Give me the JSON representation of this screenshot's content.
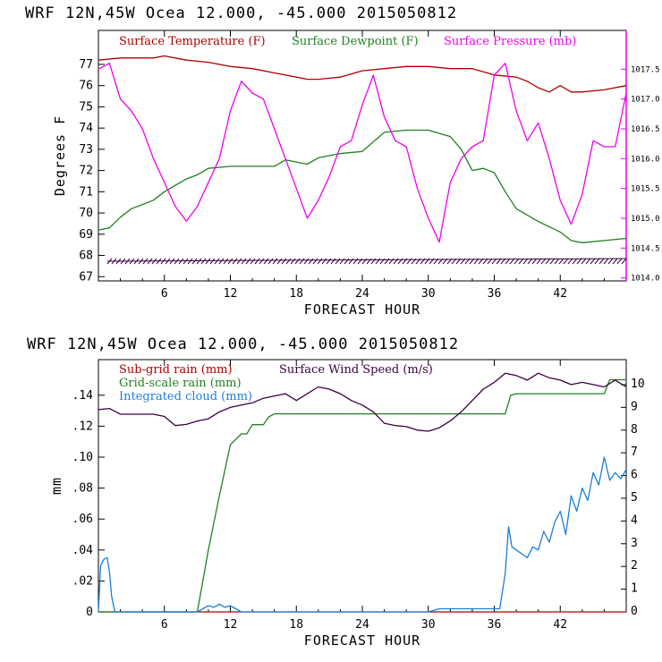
{
  "chart_data": [
    {
      "type": "line",
      "title": "WRF   12N,45W Ocea  12.000, -45.000  2015050812",
      "xlabel": "FORECAST HOUR",
      "ylabel": "Degrees F",
      "xlim": [
        0,
        48
      ],
      "ylim": [
        66.8,
        78.6
      ],
      "y2lim": [
        1013.95,
        1018.15
      ],
      "x_ticks": [
        "6",
        "12",
        "18",
        "24",
        "30",
        "36",
        "42"
      ],
      "y_ticks": [
        "67",
        "68",
        "69",
        "70",
        "71",
        "72",
        "73",
        "74",
        "75",
        "76",
        "77"
      ],
      "y2_ticks": [
        "1014.0",
        "1014.5",
        "1015.0",
        "1015.5",
        "1016.0",
        "1016.5",
        "1017.0",
        "1017.5"
      ],
      "series": [
        {
          "name": "Surface Temperature (F)",
          "color": "#b00000",
          "axis": "left",
          "x": [
            0,
            2,
            4,
            5,
            6,
            8,
            10,
            12,
            14,
            16,
            18,
            19,
            20,
            22,
            24,
            26,
            28,
            30,
            32,
            34,
            36,
            38,
            39,
            40,
            41,
            42,
            43,
            44,
            46,
            48
          ],
          "values": [
            77.2,
            77.3,
            77.3,
            77.3,
            77.4,
            77.2,
            77.1,
            76.9,
            76.8,
            76.6,
            76.4,
            76.3,
            76.3,
            76.4,
            76.7,
            76.8,
            76.9,
            76.9,
            76.8,
            76.8,
            76.5,
            76.4,
            76.2,
            75.9,
            75.7,
            76.0,
            75.7,
            75.7,
            75.8,
            76.0
          ]
        },
        {
          "name": "Surface Dewpoint (F)",
          "color": "#208020",
          "axis": "left",
          "x": [
            0,
            1,
            2,
            3,
            4,
            5,
            6,
            7,
            8,
            9,
            10,
            12,
            14,
            16,
            17,
            18,
            19,
            20,
            22,
            24,
            26,
            28,
            30,
            32,
            33,
            34,
            35,
            36,
            37,
            38,
            40,
            42,
            43,
            44,
            46,
            48
          ],
          "values": [
            69.2,
            69.3,
            69.8,
            70.2,
            70.4,
            70.6,
            71.0,
            71.3,
            71.6,
            71.8,
            72.1,
            72.2,
            72.2,
            72.2,
            72.5,
            72.4,
            72.3,
            72.6,
            72.8,
            72.9,
            73.8,
            73.9,
            73.9,
            73.6,
            73.0,
            72.0,
            72.1,
            71.9,
            71.0,
            70.2,
            69.6,
            69.1,
            68.7,
            68.6,
            68.7,
            68.8
          ]
        },
        {
          "name": "Surface Pressure (mb)",
          "color": "#ee00ee",
          "axis": "right",
          "x": [
            0,
            1,
            2,
            3,
            4,
            5,
            6,
            7,
            8,
            9,
            10,
            11,
            12,
            13,
            14,
            15,
            16,
            17,
            18,
            19,
            20,
            21,
            22,
            23,
            24,
            25,
            26,
            27,
            28,
            29,
            30,
            31,
            32,
            33,
            34,
            35,
            36,
            37,
            38,
            39,
            40,
            41,
            42,
            43,
            44,
            45,
            46,
            47,
            48
          ],
          "values": [
            1017.5,
            1017.6,
            1017.0,
            1016.8,
            1016.5,
            1016.0,
            1015.6,
            1015.2,
            1014.95,
            1015.2,
            1015.6,
            1016.0,
            1016.8,
            1017.3,
            1017.1,
            1017.0,
            1016.5,
            1016.0,
            1015.5,
            1015.0,
            1015.3,
            1015.7,
            1016.2,
            1016.3,
            1016.9,
            1017.4,
            1016.7,
            1016.3,
            1016.2,
            1015.5,
            1015.0,
            1014.6,
            1015.6,
            1016.0,
            1016.2,
            1016.3,
            1017.4,
            1017.6,
            1016.8,
            1016.3,
            1016.6,
            1016.0,
            1015.3,
            1014.9,
            1015.4,
            1016.3,
            1016.2,
            1016.2,
            1017.1
          ]
        }
      ]
    },
    {
      "type": "line",
      "title": "WRF   12N,45W Ocea  12.000, -45.000  2015050812",
      "xlabel": "FORECAST HOUR",
      "ylabel": "mm",
      "xlim": [
        0,
        48
      ],
      "ylim": [
        0,
        0.163
      ],
      "y2lim": [
        0,
        11.1
      ],
      "x_ticks": [
        "6",
        "12",
        "18",
        "24",
        "30",
        "36",
        "42"
      ],
      "y_ticks": [
        "0",
        ".02",
        ".04",
        ".06",
        ".08",
        ".10",
        ".12",
        ".14"
      ],
      "y2_ticks": [
        "0",
        "1",
        "2",
        "3",
        "4",
        "5",
        "6",
        "7",
        "8",
        "9",
        "10"
      ],
      "series": [
        {
          "name": "Sub-grid rain (mm)",
          "color": "#b00000",
          "axis": "left",
          "x": [
            0,
            48
          ],
          "values": [
            0,
            0
          ]
        },
        {
          "name": "Grid-scale rain (mm)",
          "color": "#208020",
          "axis": "left",
          "x": [
            0,
            9,
            10,
            11,
            12,
            13,
            13.5,
            14,
            15,
            15.5,
            16,
            17,
            37,
            37.5,
            38,
            46,
            46.5,
            48
          ],
          "values": [
            0,
            0,
            0.04,
            0.075,
            0.108,
            0.115,
            0.115,
            0.121,
            0.121,
            0.126,
            0.128,
            0.128,
            0.128,
            0.14,
            0.141,
            0.141,
            0.15,
            0.15
          ]
        },
        {
          "name": "Integrated cloud (mm)",
          "color": "#1a7fd8",
          "axis": "left",
          "x": [
            0,
            0.2,
            0.5,
            0.8,
            1.0,
            1.2,
            1.5,
            1.8,
            2.2,
            9,
            9.5,
            10,
            10.5,
            11,
            11.5,
            12,
            12.5,
            13,
            30,
            31,
            36.5,
            37,
            37.3,
            37.6,
            38,
            39,
            39.5,
            40,
            40.5,
            41,
            41.5,
            42,
            42.5,
            43,
            43.5,
            44,
            44.5,
            45,
            45.5,
            46,
            46.5,
            47,
            47.5,
            48
          ],
          "values": [
            0,
            0.03,
            0.034,
            0.035,
            0.026,
            0.01,
            0,
            0,
            0,
            0,
            0.002,
            0.004,
            0.003,
            0.005,
            0.003,
            0.004,
            0.002,
            0,
            0,
            0.002,
            0.002,
            0.025,
            0.055,
            0.042,
            0.04,
            0.035,
            0.042,
            0.04,
            0.052,
            0.045,
            0.058,
            0.065,
            0.05,
            0.075,
            0.065,
            0.08,
            0.072,
            0.09,
            0.082,
            0.1,
            0.085,
            0.09,
            0.086,
            0.092
          ]
        },
        {
          "name": "Surface Wind Speed (m/s)",
          "color": "#3a0040",
          "axis": "right",
          "x": [
            0,
            1,
            2,
            3,
            4,
            5,
            6,
            7,
            8,
            9,
            10,
            11,
            12,
            13,
            14,
            15,
            16,
            17,
            18,
            19,
            20,
            21,
            22,
            23,
            24,
            25,
            26,
            27,
            28,
            29,
            30,
            31,
            32,
            33,
            34,
            35,
            36,
            37,
            38,
            39,
            40,
            41,
            42,
            43,
            44,
            45,
            46,
            47,
            48
          ],
          "values": [
            8.9,
            8.95,
            8.7,
            8.7,
            8.7,
            8.7,
            8.6,
            8.2,
            8.25,
            8.4,
            8.5,
            8.8,
            9.0,
            9.1,
            9.2,
            9.4,
            9.5,
            9.6,
            9.3,
            9.6,
            9.9,
            9.8,
            9.6,
            9.3,
            9.1,
            8.8,
            8.3,
            8.2,
            8.15,
            8.0,
            7.95,
            8.1,
            8.4,
            8.8,
            9.3,
            9.8,
            10.1,
            10.5,
            10.4,
            10.2,
            10.5,
            10.3,
            10.2,
            10.0,
            10.1,
            10.0,
            9.9,
            10.2,
            9.9
          ]
        }
      ]
    }
  ]
}
